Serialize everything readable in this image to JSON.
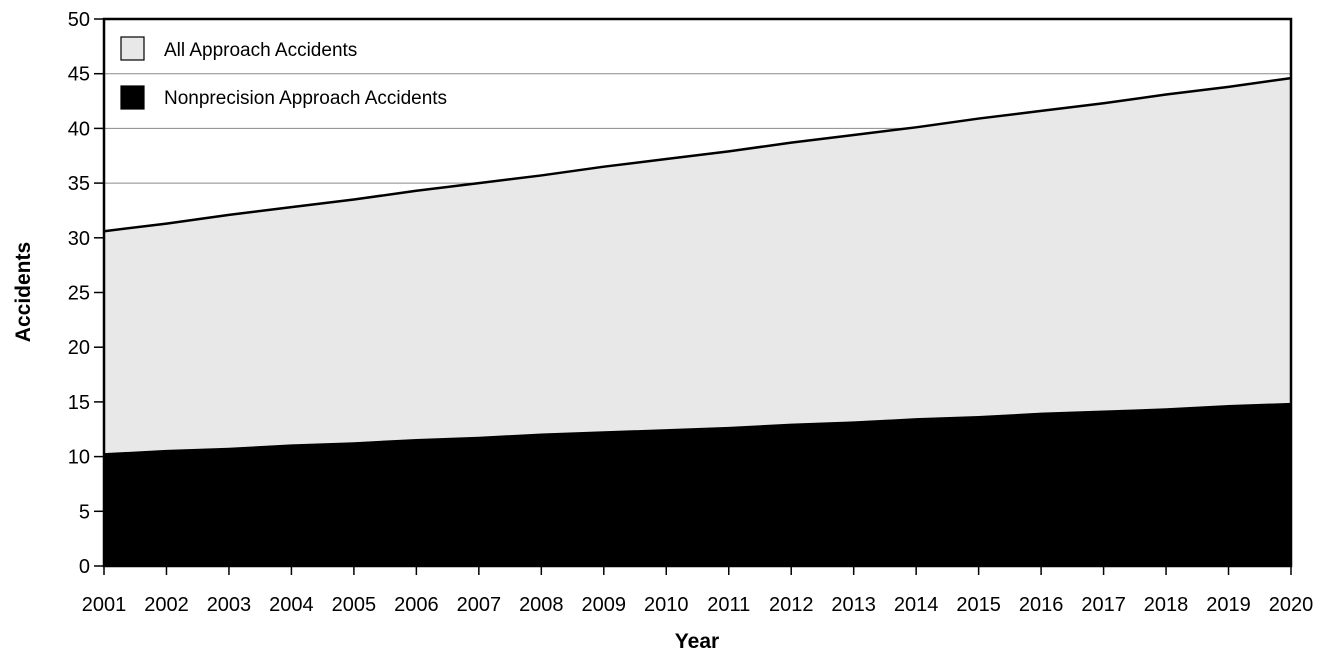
{
  "chart_data": {
    "type": "area",
    "xlabel": "Year",
    "ylabel": "Accidents",
    "ylim": [
      0,
      50
    ],
    "yticks": [
      0,
      5,
      10,
      15,
      20,
      25,
      30,
      35,
      40,
      45,
      50
    ],
    "x": [
      "2001",
      "2002",
      "2003",
      "2004",
      "2005",
      "2006",
      "2007",
      "2008",
      "2009",
      "2010",
      "2011",
      "2012",
      "2013",
      "2014",
      "2015",
      "2016",
      "2017",
      "2018",
      "2019",
      "2020"
    ],
    "grid": true,
    "legend_position": "top-left",
    "series": [
      {
        "name": "All Approach Accidents",
        "color": "#e8e8e8",
        "values": [
          30.6,
          31.3,
          32.1,
          32.8,
          33.5,
          34.3,
          35.0,
          35.7,
          36.5,
          37.2,
          37.9,
          38.7,
          39.4,
          40.1,
          40.9,
          41.6,
          42.3,
          43.1,
          43.8,
          44.6
        ]
      },
      {
        "name": "Nonprecision Approach Accidents",
        "color": "#000000",
        "values": [
          10.2,
          10.5,
          10.7,
          11.0,
          11.2,
          11.5,
          11.7,
          12.0,
          12.2,
          12.4,
          12.6,
          12.9,
          13.1,
          13.4,
          13.6,
          13.9,
          14.1,
          14.3,
          14.6,
          14.8
        ]
      }
    ]
  }
}
